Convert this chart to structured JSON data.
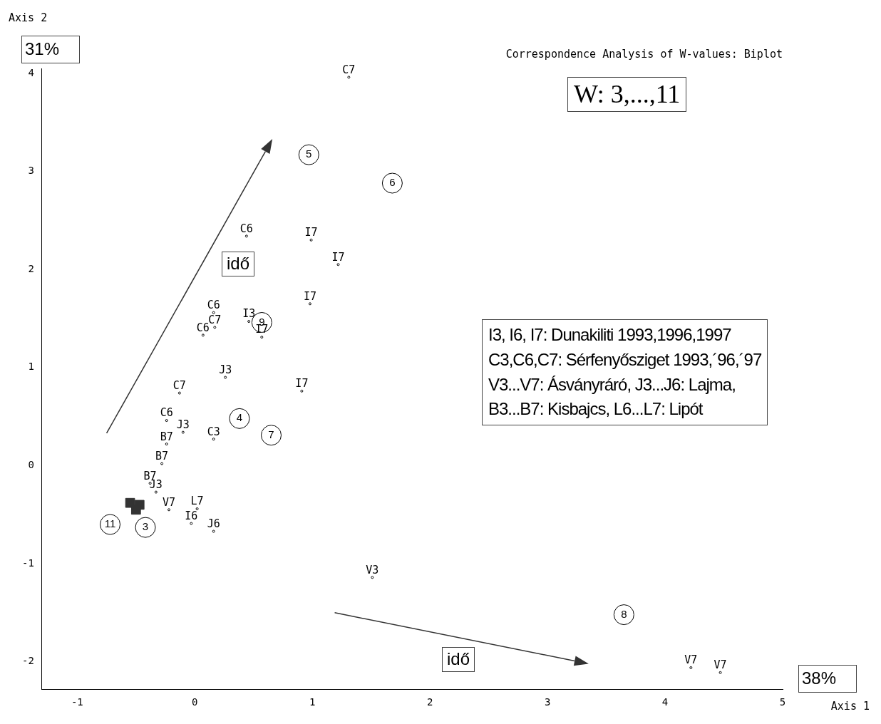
{
  "chart_data": {
    "type": "scatter",
    "title": "Correspondence Analysis of W-values: Biplot",
    "xlabel": "Axis 1",
    "ylabel": "Axis 2",
    "xlim": [
      -1.3,
      5.0
    ],
    "ylim": [
      -2.28,
      4.05
    ],
    "xticks": [
      -1,
      0,
      1,
      2,
      3,
      4,
      5
    ],
    "yticks": [
      -2,
      -1,
      0,
      1,
      2,
      3,
      4
    ],
    "grid": false,
    "legend": false,
    "annotations": [
      "31%",
      "38%",
      "W: 3,...,11",
      "I3, I6, I7: Dunakiliti 1993,1996,1997",
      "C3,C6,C7: Sérfenyősziget 1993,´96,´97",
      "V3...V7: Ásványráró, J3...J6: Lajma,",
      "B3...B7: Kisbajcs, L6...L7: Lipót",
      "idő",
      "idő",
      {
        "text": "5",
        "x": 0.97,
        "y": 3.17
      },
      {
        "text": "6",
        "x": 1.68,
        "y": 2.88
      },
      {
        "text": "9",
        "x": 0.57,
        "y": 1.46
      },
      {
        "text": "4",
        "x": 0.38,
        "y": 0.48
      },
      {
        "text": "7",
        "x": 0.65,
        "y": 0.31
      },
      {
        "text": "11",
        "x": -0.72,
        "y": -0.6
      },
      {
        "text": "3",
        "x": -0.42,
        "y": -0.63
      },
      {
        "text": "8",
        "x": 3.65,
        "y": -1.52
      }
    ],
    "series": [
      {
        "color": "#000000",
        "marker": "circle",
        "x": [
          1.31,
          0.44,
          0.99,
          1.22,
          0.98,
          0.16,
          0.17,
          0.07,
          0.46,
          0.57,
          0.26,
          0.91,
          -0.13,
          -0.24,
          -0.1,
          0.16,
          -0.24,
          -0.28,
          -0.38,
          -0.33,
          -0.22,
          0.02,
          -0.03,
          0.16,
          1.51,
          4.22,
          4.47
        ],
        "values": [
          3.96,
          2.34,
          2.3,
          2.05,
          1.65,
          1.56,
          1.41,
          1.33,
          1.47,
          1.31,
          0.9,
          0.76,
          0.74,
          0.46,
          0.34,
          0.27,
          0.22,
          0.02,
          -0.18,
          -0.27,
          -0.45,
          -0.44,
          -0.59,
          -0.67,
          -1.14,
          -2.06,
          -2.11
        ],
        "value_labels": [
          "C7",
          "C6",
          "I7",
          "I7",
          "I7",
          "C6",
          "C7",
          "C6",
          "I3",
          "I7",
          "J3",
          "I7",
          "C7",
          "C6",
          "J3",
          "C3",
          "B7",
          "B7",
          "B7",
          "J3",
          "V7",
          "L7",
          "I6",
          "J6",
          "V3",
          "V7",
          "V7"
        ]
      },
      {
        "color": "#000000",
        "marker": "circle",
        "x": [
          0.97,
          1.68,
          0.57,
          0.38,
          0.65,
          -0.72,
          -0.42,
          3.65
        ],
        "values": [
          3.17,
          2.88,
          1.46,
          0.48,
          0.31,
          -0.6,
          -0.63,
          -1.52
        ]
      },
      {
        "color": "#333333",
        "marker": "square",
        "x": [
          -0.55,
          -0.47,
          -0.5
        ],
        "values": [
          -0.38,
          -0.4,
          -0.45
        ]
      }
    ]
  }
}
